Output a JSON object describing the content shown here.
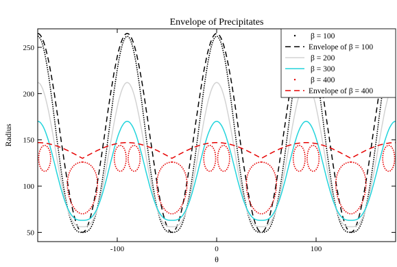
{
  "chart_data": {
    "type": "line",
    "title": "Envelope of Precipitates",
    "xlabel": "θ",
    "ylabel": "Radius",
    "xlim": [
      -180,
      180
    ],
    "ylim": [
      40,
      270
    ],
    "x_ticks": [
      -100,
      0,
      100
    ],
    "y_ticks": [
      50,
      100,
      150,
      200,
      250
    ],
    "grid": false,
    "legend_placement": "top-right",
    "series": [
      {
        "name": "β = 100",
        "color": "#000000",
        "style": "dotted",
        "peak": 262,
        "trough": 50,
        "sharp": 3.0
      },
      {
        "name": "Envelope of  β = 100",
        "color": "#000000",
        "style": "dashed",
        "peak": 265,
        "trough": 50,
        "sharp": 2.0
      },
      {
        "name": "β = 200",
        "color": "#d3d3d3",
        "style": "solid",
        "peak": 212,
        "trough": 56,
        "sharp": 3.0
      },
      {
        "name": "β = 300",
        "color": "#22d4dc",
        "style": "solid",
        "peak": 170,
        "trough": 63,
        "sharp": 3.0
      },
      {
        "name": "β = 400",
        "color": "#e60000",
        "style": "dotted",
        "peak": 147,
        "trough": 70,
        "lobes": true
      },
      {
        "name": "Envelope of  β = 400",
        "color": "#e60000",
        "style": "dashed",
        "peak": 147,
        "trough": 130,
        "sharp": 1.0
      }
    ]
  }
}
